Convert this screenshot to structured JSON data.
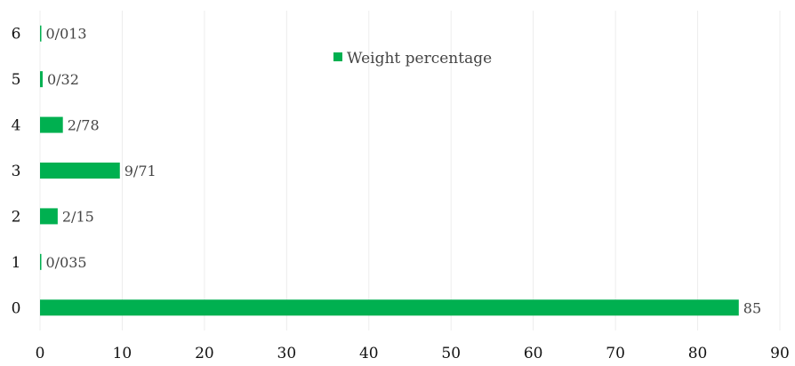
{
  "chart_data": {
    "type": "bar",
    "orientation": "horizontal",
    "categories": [
      "0",
      "1",
      "2",
      "3",
      "4",
      "5",
      "6"
    ],
    "series": [
      {
        "name": "Weight percentage",
        "values": [
          85,
          0.035,
          2.15,
          9.71,
          2.78,
          0.32,
          0.013
        ],
        "labels": [
          "85",
          "0/035",
          "2/15",
          "9/71",
          "2/78",
          "0/32",
          "0/013"
        ]
      }
    ],
    "x_ticks": [
      "0",
      "10",
      "20",
      "30",
      "40",
      "50",
      "60",
      "70",
      "80",
      "90"
    ],
    "xlim": [
      0,
      90
    ],
    "grid": "vertical",
    "legend": "top-center",
    "color": "#00b050"
  }
}
